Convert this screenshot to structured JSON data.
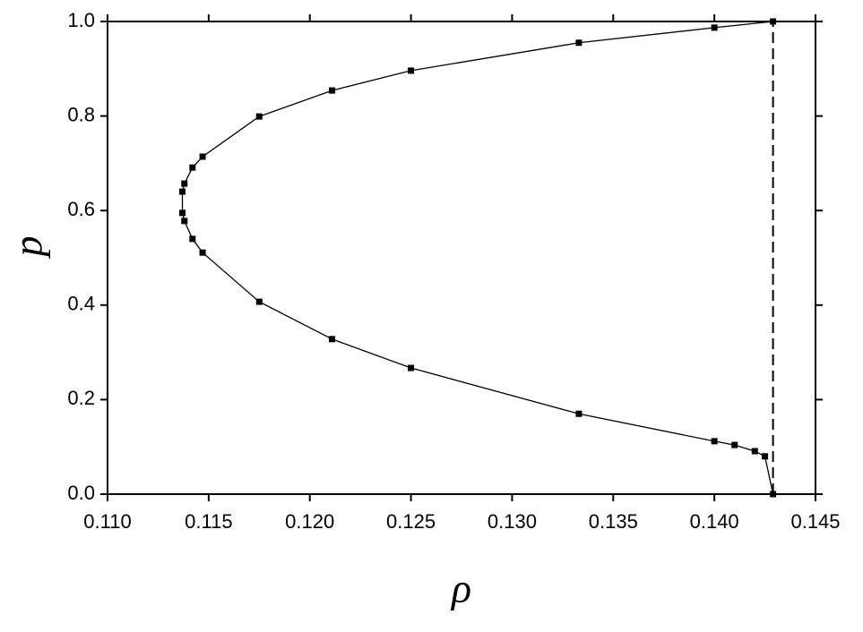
{
  "chart_data": {
    "type": "line",
    "x_label": "ρ",
    "y_label": "p",
    "xlim": [
      0.11,
      0.145
    ],
    "xticks": [
      {
        "value": 0.11,
        "label": "0.110"
      },
      {
        "value": 0.115,
        "label": "0.115"
      },
      {
        "value": 0.12,
        "label": "0.120"
      },
      {
        "value": 0.125,
        "label": "0.125"
      },
      {
        "value": 0.13,
        "label": "0.130"
      },
      {
        "value": 0.135,
        "label": "0.135"
      },
      {
        "value": 0.14,
        "label": "0.140"
      },
      {
        "value": 0.145,
        "label": "0.145"
      }
    ],
    "ylim": [
      0,
      1
    ],
    "yticks": [
      {
        "value": 0,
        "label": "0.0"
      },
      {
        "value": 0.2,
        "label": "0.2"
      },
      {
        "value": 0.4,
        "label": "0.4"
      },
      {
        "value": 0.6,
        "label": "0.6"
      },
      {
        "value": 0.8,
        "label": "0.8"
      },
      {
        "value": 1,
        "label": "1.0"
      }
    ],
    "series": [
      {
        "color": "#000000",
        "markers": true,
        "dashed": false,
        "x": [
          0.1429,
          0.14,
          0.1333,
          0.125,
          0.1211,
          0.1175,
          0.1147,
          0.1142,
          0.1138,
          0.1137,
          0.1137,
          0.1138,
          0.1142,
          0.1147,
          0.1175,
          0.1211,
          0.125,
          0.1333,
          0.14,
          0.141,
          0.142,
          0.1425,
          0.1429
        ],
        "values": [
          1.0,
          0.987,
          0.955,
          0.896,
          0.854,
          0.799,
          0.714,
          0.691,
          0.657,
          0.64,
          0.595,
          0.578,
          0.54,
          0.511,
          0.407,
          0.328,
          0.267,
          0.17,
          0.112,
          0.104,
          0.091,
          0.08,
          0.0
        ]
      },
      {
        "color": "#000000",
        "markers": false,
        "dashed": true,
        "x": [
          0.1429,
          0.1429
        ],
        "values": [
          0.0,
          1.0
        ]
      }
    ]
  }
}
